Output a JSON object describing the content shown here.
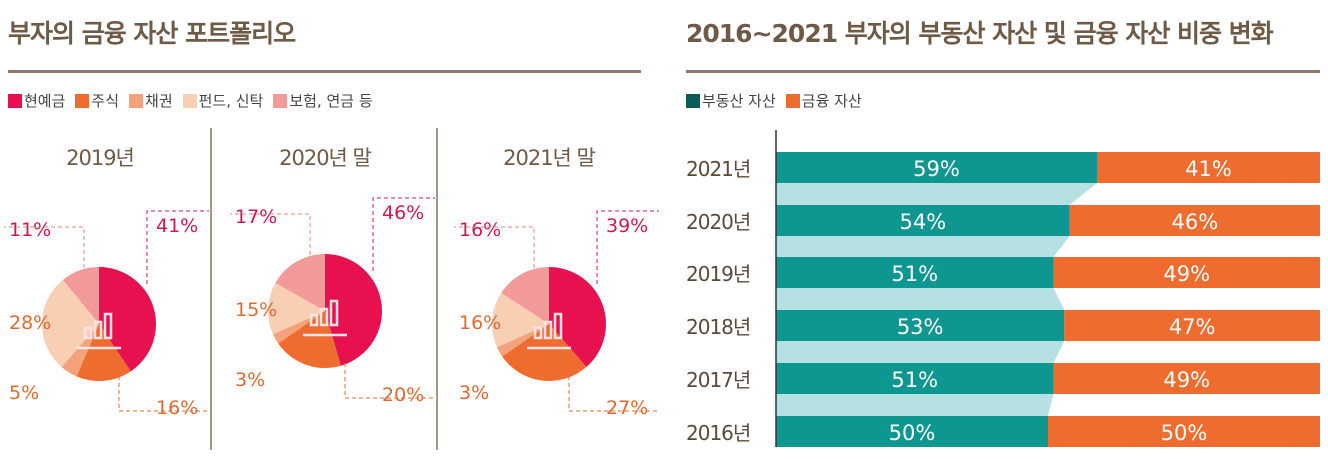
{
  "left": {
    "title": "부자의 금융 자산 포트폴리오",
    "legend": [
      {
        "label": "현예금",
        "color": "#e8114f"
      },
      {
        "label": "주식",
        "color": "#ef6c2f"
      },
      {
        "label": "채권",
        "color": "#f4a27a"
      },
      {
        "label": "펀드, 신탁",
        "color": "#f9cfb3"
      },
      {
        "label": "보험, 연금 등",
        "color": "#f29a9a"
      }
    ]
  },
  "right": {
    "title": "2016~2021 부자의 부동산 자산 및 금융 자산 비중 변화",
    "legend": [
      {
        "label": "부동산 자산",
        "color": "#0b5d57"
      },
      {
        "label": "금융 자산",
        "color": "#ef6c2f"
      }
    ]
  },
  "chart_data": [
    {
      "type": "pie",
      "categories": [
        "현예금",
        "주식",
        "채권",
        "펀드, 신탁",
        "보험, 연금 등"
      ],
      "pies": [
        {
          "title": "2019년",
          "values": [
            41,
            16,
            5,
            28,
            11
          ],
          "labels": [
            "41%",
            "16%",
            "5%",
            "28%",
            "11%"
          ],
          "icon": "calculator-monitor-icon"
        },
        {
          "title": "2020년 말",
          "values": [
            46,
            20,
            3,
            15,
            17
          ],
          "labels": [
            "46%",
            "20%",
            "3%",
            "15%",
            "17%"
          ],
          "icon": "rising-chart-icon"
        },
        {
          "title": "2021년 말",
          "values": [
            39,
            27,
            3,
            16,
            16
          ],
          "labels": [
            "39%",
            "27%",
            "3%",
            "16%",
            "16%"
          ],
          "icon": "magnifier-chart-icon"
        }
      ]
    },
    {
      "type": "bar",
      "orientation": "horizontal",
      "stacked": true,
      "categories": [
        "2021년",
        "2020년",
        "2019년",
        "2018년",
        "2017년",
        "2016년"
      ],
      "series": [
        {
          "name": "부동산 자산",
          "values": [
            59,
            54,
            51,
            53,
            51,
            50
          ],
          "labels": [
            "59%",
            "54%",
            "51%",
            "53%",
            "51%",
            "50%"
          ],
          "color": "#0e9690"
        },
        {
          "name": "금융 자산",
          "values": [
            41,
            46,
            49,
            47,
            49,
            50
          ],
          "labels": [
            "41%",
            "46%",
            "49%",
            "47%",
            "49%",
            "50%"
          ],
          "color": "#ef6c2f"
        }
      ],
      "xlim": [
        0,
        100
      ],
      "connector_color": "#b5e1e3"
    }
  ]
}
